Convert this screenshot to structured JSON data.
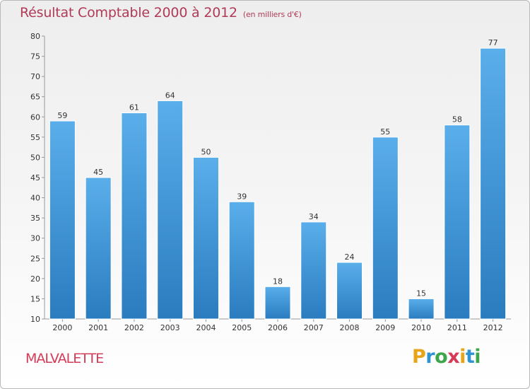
{
  "title": "Résultat Comptable 2000 à 2012",
  "subtitle": "(en milliers d'€)",
  "town": "MALVALETTE",
  "logo": {
    "letters": [
      "P",
      "r",
      "o",
      "x",
      "i",
      "t",
      "i"
    ],
    "colors": [
      "#e8a317",
      "#2f93d0",
      "#3da64b",
      "#d63a56",
      "#e8a317",
      "#2f93d0",
      "#3da64b"
    ]
  },
  "chart_data": {
    "type": "bar",
    "categories": [
      "2000",
      "2001",
      "2002",
      "2003",
      "2004",
      "2005",
      "2006",
      "2007",
      "2008",
      "2009",
      "2010",
      "2011",
      "2012"
    ],
    "values": [
      59,
      45,
      61,
      64,
      50,
      39,
      18,
      34,
      24,
      55,
      15,
      58,
      77
    ],
    "ylim": [
      10,
      80
    ],
    "yticks": [
      10,
      15,
      20,
      25,
      30,
      35,
      40,
      45,
      50,
      55,
      60,
      65,
      70,
      75,
      80
    ],
    "grid": false,
    "bar_color": "#4a9fe0"
  }
}
